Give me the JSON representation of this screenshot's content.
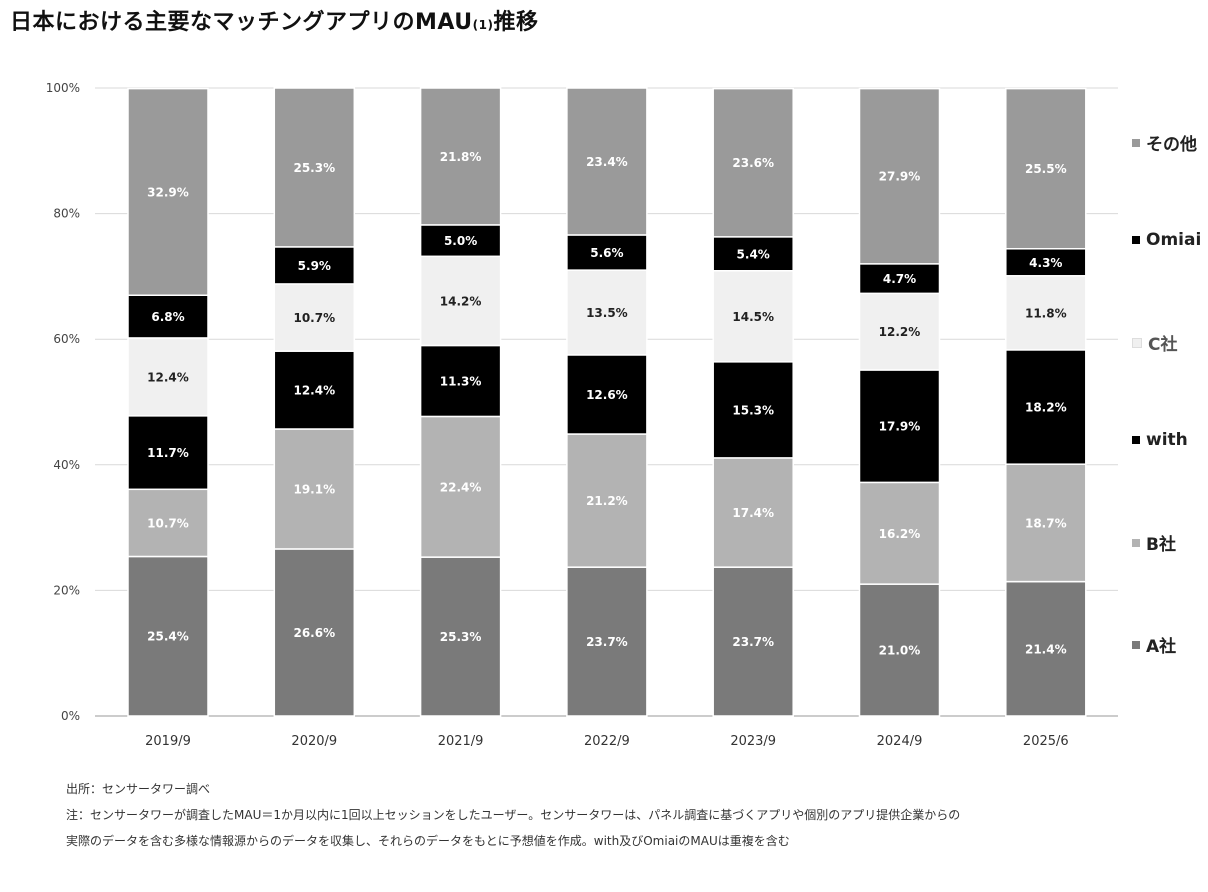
{
  "title_main": "日本における主要なマッチングアプリのMAU",
  "title_sup": "(1)",
  "title_suffix": "推移",
  "chart_data": {
    "type": "bar",
    "stacked": true,
    "percent_scale": true,
    "categories": [
      "2019/9",
      "2020/9",
      "2021/9",
      "2022/9",
      "2023/9",
      "2024/9",
      "2025/6"
    ],
    "y_ticks": [
      "0%",
      "20%",
      "40%",
      "60%",
      "80%",
      "100%"
    ],
    "ylim": [
      0,
      100
    ],
    "grid": true,
    "legend_position": "right",
    "series": [
      {
        "name": "A社",
        "color": "#7a7a7a",
        "text_color": "#ffffff",
        "values": [
          25.4,
          26.6,
          25.3,
          23.7,
          23.7,
          21.0,
          21.4
        ],
        "labels": [
          "25.4%",
          "26.6%",
          "25.3%",
          "23.7%",
          "23.7%",
          "21.0%",
          "21.4%"
        ]
      },
      {
        "name": "B社",
        "color": "#b3b3b3",
        "text_color": "#ffffff",
        "values": [
          10.7,
          19.1,
          22.4,
          21.2,
          17.4,
          16.2,
          18.7
        ],
        "labels": [
          "10.7%",
          "19.1%",
          "22.4%",
          "21.2%",
          "17.4%",
          "16.2%",
          "18.7%"
        ]
      },
      {
        "name": "with",
        "color": "#000000",
        "text_color": "#ffffff",
        "values": [
          11.7,
          12.4,
          11.3,
          12.6,
          15.3,
          17.9,
          18.2
        ],
        "labels": [
          "11.7%",
          "12.4%",
          "11.3%",
          "12.6%",
          "15.3%",
          "17.9%",
          "18.2%"
        ]
      },
      {
        "name": "C社",
        "color": "#f0f0f0",
        "text_color": "#222222",
        "values": [
          12.4,
          10.7,
          14.2,
          13.5,
          14.5,
          12.2,
          11.8
        ],
        "labels": [
          "12.4%",
          "10.7%",
          "14.2%",
          "13.5%",
          "14.5%",
          "12.2%",
          "11.8%"
        ]
      },
      {
        "name": "Omiai",
        "color": "#000000",
        "text_color": "#ffffff",
        "values": [
          6.8,
          5.9,
          5.0,
          5.6,
          5.4,
          4.7,
          4.3
        ],
        "labels": [
          "6.8%",
          "5.9%",
          "5.0%",
          "5.6%",
          "5.4%",
          "4.7%",
          "4.3%"
        ]
      },
      {
        "name": "その他",
        "color": "#9a9a9a",
        "text_color": "#ffffff",
        "values": [
          32.9,
          25.3,
          21.8,
          23.4,
          23.6,
          27.9,
          25.5
        ],
        "labels": [
          "32.9%",
          "25.3%",
          "21.8%",
          "23.4%",
          "23.6%",
          "27.9%",
          "25.5%"
        ]
      }
    ],
    "legend_order": [
      "その他",
      "Omiai",
      "C社",
      "with",
      "B社",
      "A社"
    ]
  },
  "footer": {
    "source": "出所：センサータワー調べ",
    "note_line1": "注：センサータワーが調査したMAU＝1か月以内に1回以上セッションをしたユーザー。センサータワーは、パネル調査に基づくアプリや個別のアプリ提供企業からの",
    "note_line2": "実際のデータを含む多様な情報源からのデータを収集し、それらのデータをもとに予想値を作成。with及びOmiaiのMAUは重複を含む"
  }
}
